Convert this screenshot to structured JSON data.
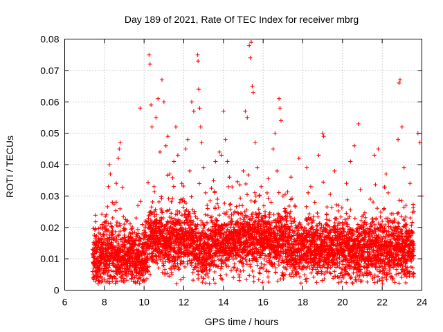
{
  "chart_data": {
    "type": "scatter",
    "title": "Day 189 of 2021, Rate Of TEC Index for receiver mbrg",
    "xlabel": "GPS time / hours",
    "ylabel": "ROTI / TECUs",
    "xlim": [
      6,
      24
    ],
    "ylim": [
      0,
      0.08
    ],
    "xticks": [
      "6",
      "8",
      "10",
      "12",
      "14",
      "16",
      "18",
      "20",
      "22",
      "24"
    ],
    "yticks": [
      "0",
      "0.01",
      "0.02",
      "0.03",
      "0.04",
      "0.05",
      "0.06",
      "0.07",
      "0.08"
    ],
    "grid": true,
    "marker": "plus",
    "color": "#ff0000",
    "series": [
      {
        "points": [
          [
            7.5,
            0.008
          ],
          [
            7.6,
            0.012
          ],
          [
            7.7,
            0.015
          ],
          [
            7.8,
            0.02
          ],
          [
            7.9,
            0.011
          ],
          [
            8.0,
            0.009
          ],
          [
            8.1,
            0.024
          ],
          [
            8.2,
            0.033
          ],
          [
            8.25,
            0.04
          ],
          [
            8.3,
            0.037
          ],
          [
            8.4,
            0.028
          ],
          [
            8.5,
            0.013
          ],
          [
            8.6,
            0.034
          ],
          [
            8.7,
            0.042
          ],
          [
            8.75,
            0.045
          ],
          [
            8.8,
            0.047
          ],
          [
            8.85,
            0.003
          ],
          [
            9.0,
            0.011
          ],
          [
            9.2,
            0.016
          ],
          [
            9.4,
            0.008
          ],
          [
            9.6,
            0.023
          ],
          [
            9.8,
            0.058
          ],
          [
            10.0,
            0.019
          ],
          [
            10.2,
            0.006
          ],
          [
            10.25,
            0.075
          ],
          [
            10.3,
            0.072
          ],
          [
            10.35,
            0.059
          ],
          [
            10.4,
            0.052
          ],
          [
            10.5,
            0.033
          ],
          [
            10.6,
            0.055
          ],
          [
            10.7,
            0.061
          ],
          [
            10.8,
            0.044
          ],
          [
            10.9,
            0.067
          ],
          [
            11.0,
            0.06
          ],
          [
            11.1,
            0.046
          ],
          [
            11.2,
            0.049
          ],
          [
            11.3,
            0.037
          ],
          [
            11.4,
            0.005
          ],
          [
            11.5,
            0.041
          ],
          [
            11.6,
            0.052
          ],
          [
            11.7,
            0.043
          ],
          [
            11.8,
            0.028
          ],
          [
            11.9,
            0.034
          ],
          [
            12.0,
            0.009
          ],
          [
            12.1,
            0.045
          ],
          [
            12.2,
            0.048
          ],
          [
            12.3,
            0.038
          ],
          [
            12.4,
            0.06
          ],
          [
            12.5,
            0.057
          ],
          [
            12.7,
            0.075
          ],
          [
            12.72,
            0.073
          ],
          [
            12.75,
            0.064
          ],
          [
            12.8,
            0.058
          ],
          [
            12.85,
            0.052
          ],
          [
            12.9,
            0.047
          ],
          [
            13.0,
            0.039
          ],
          [
            13.1,
            0.031
          ],
          [
            13.2,
            0.026
          ],
          [
            13.3,
            0.008
          ],
          [
            13.4,
            0.022
          ],
          [
            13.5,
            0.035
          ],
          [
            13.6,
            0.041
          ],
          [
            13.7,
            0.029
          ],
          [
            13.8,
            0.044
          ],
          [
            13.9,
            0.043
          ],
          [
            14.0,
            0.057
          ],
          [
            14.1,
            0.048
          ],
          [
            14.2,
            0.041
          ],
          [
            14.3,
            0.036
          ],
          [
            14.4,
            0.021
          ],
          [
            14.5,
            0.004
          ],
          [
            14.6,
            0.018
          ],
          [
            14.8,
            0.027
          ],
          [
            15.0,
            0.038
          ],
          [
            15.1,
            0.057
          ],
          [
            15.2,
            0.055
          ],
          [
            15.3,
            0.078
          ],
          [
            15.35,
            0.074
          ],
          [
            15.4,
            0.079
          ],
          [
            15.45,
            0.065
          ],
          [
            15.5,
            0.063
          ],
          [
            15.6,
            0.047
          ],
          [
            15.7,
            0.039
          ],
          [
            15.8,
            0.03
          ],
          [
            15.9,
            0.033
          ],
          [
            16.0,
            0.007
          ],
          [
            16.1,
            0.025
          ],
          [
            16.2,
            0.031
          ],
          [
            16.3,
            0.024
          ],
          [
            16.4,
            0.028
          ],
          [
            16.5,
            0.045
          ],
          [
            16.6,
            0.05
          ],
          [
            16.7,
            0.038
          ],
          [
            16.8,
            0.061
          ],
          [
            16.85,
            0.058
          ],
          [
            16.9,
            0.054
          ],
          [
            17.0,
            0.03
          ],
          [
            17.2,
            0.022
          ],
          [
            17.4,
            0.036
          ],
          [
            17.6,
            0.027
          ],
          [
            17.8,
            0.042
          ],
          [
            18.0,
            0.015
          ],
          [
            18.2,
            0.039
          ],
          [
            18.4,
            0.033
          ],
          [
            18.6,
            0.028
          ],
          [
            18.8,
            0.043
          ],
          [
            19.0,
            0.05
          ],
          [
            19.05,
            0.049
          ],
          [
            19.2,
            0.024
          ],
          [
            19.4,
            0.019
          ],
          [
            19.6,
            0.038
          ],
          [
            19.8,
            0.027
          ],
          [
            20.0,
            0.016
          ],
          [
            20.2,
            0.034
          ],
          [
            20.4,
            0.041
          ],
          [
            20.6,
            0.046
          ],
          [
            20.8,
            0.053
          ],
          [
            20.9,
            0.032
          ],
          [
            21.0,
            0.012
          ],
          [
            21.2,
            0.021
          ],
          [
            21.4,
            0.029
          ],
          [
            21.6,
            0.043
          ],
          [
            21.8,
            0.045
          ],
          [
            22.0,
            0.003
          ],
          [
            22.1,
            0.026
          ],
          [
            22.2,
            0.037
          ],
          [
            22.3,
            0.031
          ],
          [
            22.4,
            0.022
          ],
          [
            22.6,
            0.018
          ],
          [
            22.8,
            0.048
          ],
          [
            22.85,
            0.066
          ],
          [
            22.9,
            0.067
          ],
          [
            23.0,
            0.052
          ],
          [
            23.1,
            0.039
          ],
          [
            23.2,
            0.027
          ],
          [
            23.4,
            0.034
          ],
          [
            23.6,
            0.025
          ],
          [
            23.8,
            0.05
          ],
          [
            23.9,
            0.047
          ],
          [
            24.0,
            0.03
          ]
        ]
      }
    ],
    "density": {
      "bins_start_hour": 7.4,
      "bin_width_hours": 0.1,
      "median_by_bin": [
        0.011,
        0.012,
        0.011,
        0.01,
        0.011,
        0.012,
        0.012,
        0.013,
        0.012,
        0.013,
        0.012,
        0.011,
        0.01,
        0.011,
        0.01,
        0.011,
        0.012,
        0.011,
        0.012,
        0.012,
        0.011,
        0.01,
        0.011,
        0.011,
        0.01,
        0.01,
        0.011,
        0.011,
        0.016,
        0.017,
        0.016,
        0.017,
        0.018,
        0.016,
        0.017,
        0.017,
        0.016,
        0.016,
        0.016,
        0.016,
        0.016,
        0.016,
        0.017,
        0.016,
        0.016,
        0.017,
        0.017,
        0.017,
        0.017,
        0.017,
        0.016,
        0.015,
        0.014,
        0.013,
        0.012,
        0.012,
        0.013,
        0.013,
        0.013,
        0.014,
        0.014,
        0.015,
        0.015,
        0.015,
        0.015,
        0.015,
        0.015,
        0.015,
        0.016,
        0.016,
        0.016,
        0.016,
        0.016,
        0.016,
        0.016,
        0.016,
        0.016,
        0.016,
        0.016,
        0.016,
        0.016,
        0.016,
        0.016,
        0.016,
        0.016,
        0.016,
        0.016,
        0.016,
        0.016,
        0.015,
        0.015,
        0.015,
        0.015,
        0.015,
        0.015,
        0.015,
        0.015,
        0.015,
        0.014,
        0.014,
        0.014,
        0.014,
        0.014,
        0.014,
        0.014,
        0.014,
        0.014,
        0.014,
        0.014,
        0.014,
        0.014,
        0.014,
        0.014,
        0.014,
        0.014,
        0.014,
        0.014,
        0.014,
        0.014,
        0.014,
        0.014,
        0.014,
        0.014,
        0.014,
        0.014,
        0.014,
        0.013,
        0.013,
        0.013,
        0.013,
        0.013,
        0.013,
        0.013,
        0.013,
        0.013,
        0.013,
        0.013,
        0.013,
        0.013,
        0.013,
        0.013,
        0.013,
        0.013,
        0.013,
        0.013,
        0.013,
        0.013,
        0.013,
        0.013,
        0.013,
        0.013,
        0.013,
        0.013,
        0.013,
        0.013,
        0.013,
        0.013,
        0.013,
        0.013,
        0.013,
        0.013,
        0.013
      ]
    }
  }
}
